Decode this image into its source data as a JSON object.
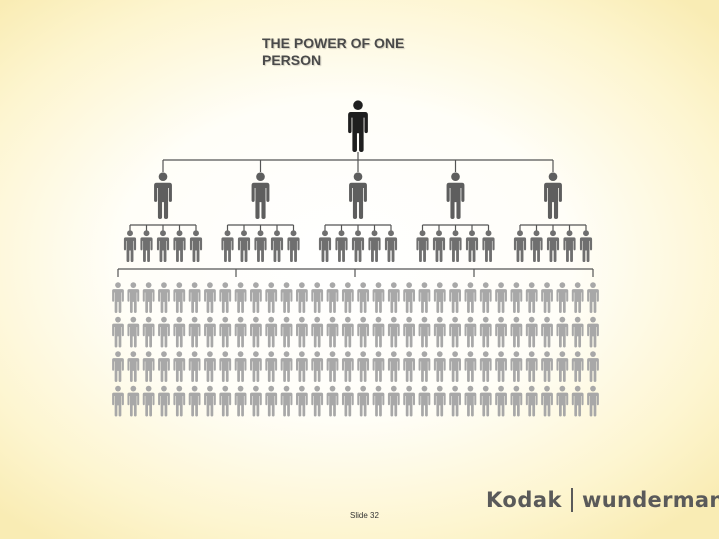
{
  "slide": {
    "title": "THE POWER OF ONE PERSON",
    "footer": "Slide 32"
  },
  "logo": {
    "left_text": "Kodak",
    "right_text": "wunderman"
  },
  "diagram": {
    "levels": [
      {
        "level": 1,
        "count": 1,
        "color": "#1f1f1f"
      },
      {
        "level": 2,
        "count": 5,
        "color": "#5e5e5e"
      },
      {
        "level": 3,
        "count": 25,
        "color": "#6f6f6f"
      },
      {
        "level": 4,
        "count": 128,
        "color": "#a8a8a8"
      }
    ],
    "line_color": "#555555"
  }
}
